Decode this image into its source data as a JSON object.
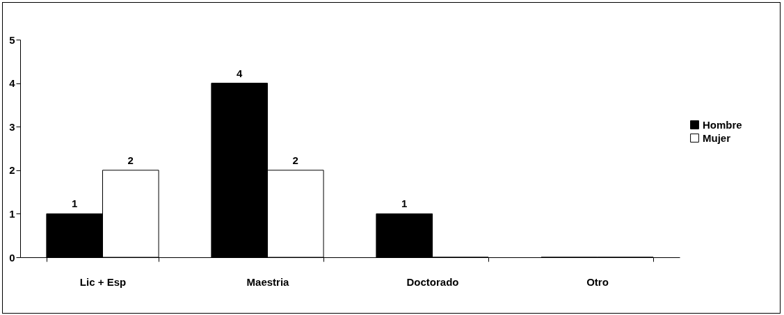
{
  "chart_data": {
    "type": "bar",
    "categories": [
      "Lic + Esp",
      "Maestria",
      "Doctorado",
      "Otro"
    ],
    "series": [
      {
        "name": "Hombre",
        "color": "#000000",
        "values": [
          1,
          4,
          1,
          0
        ],
        "value_labels": [
          "1",
          "4",
          "1",
          null
        ]
      },
      {
        "name": "Mujer",
        "color": "#ffffff",
        "values": [
          2,
          2,
          0,
          0
        ],
        "value_labels": [
          "2",
          "2",
          null,
          null
        ]
      }
    ],
    "ylim": [
      0,
      5
    ],
    "yticks": [
      0,
      1,
      2,
      3,
      4,
      5
    ],
    "grid": false,
    "legend": "right"
  }
}
